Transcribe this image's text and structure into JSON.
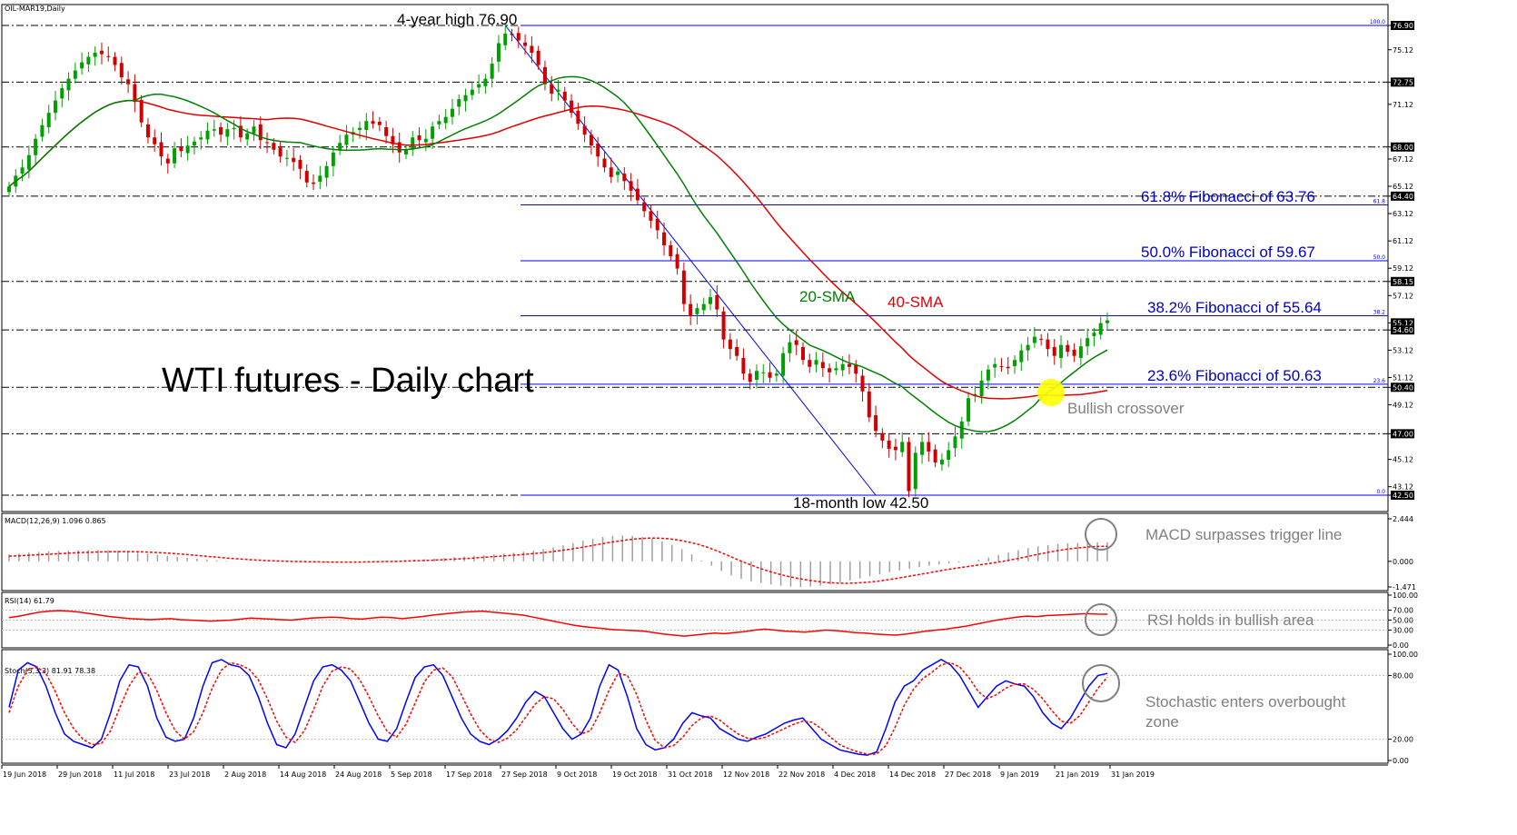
{
  "window": {
    "symbol_label": "OIL-MAR19,Daily",
    "headline": "WTI futures - Daily chart"
  },
  "annotations": {
    "high": "4-year high 76.90",
    "low": "18-month low 42.50",
    "sma20": "20-SMA",
    "sma40": "40-SMA",
    "fib618": "61.8% Fibonacci of 63.76",
    "fib50": "50.0% Fibonacci of 59.67",
    "fib382": "38.2% Fibonacci of 55.64",
    "fib236": "23.6% Fibonacci of 50.63",
    "crossover": "Bullish crossover",
    "macd_note": "MACD surpasses trigger line",
    "rsi_note": "RSI holds in bullish area",
    "stoch_note_1": "Stochastic enters overbought",
    "stoch_note_2": "zone"
  },
  "colors": {
    "bull": "#00a000",
    "bear": "#d00000",
    "sma20": "#008000",
    "sma40": "#e00000",
    "fib": "#0000ff",
    "annotation_blue": "#0000cc",
    "crossover_marker": "#ffff00",
    "oscillator_main": "#0000ff",
    "oscillator_signal": "#ff0000",
    "grid_dash": "#000000"
  },
  "chart_data": [
    {
      "type": "candlestick",
      "title": "OIL-MAR19,Daily",
      "ylim": [
        42.5,
        76.9
      ],
      "price_ticks": [
        "76.90",
        "75.12",
        "72.75",
        "71.12",
        "68.00",
        "67.12",
        "65.12",
        "64.40",
        "63.12",
        "61.12",
        "59.12",
        "58.15",
        "57.12",
        "55.12",
        "54.60",
        "53.12",
        "51.12",
        "50.40",
        "49.12",
        "47.00",
        "45.12",
        "43.12",
        "42.50"
      ],
      "highlighted_ticks": [
        "76.90",
        "72.75",
        "68.00",
        "64.40",
        "58.15",
        "55.12",
        "54.60",
        "50.40",
        "47.00",
        "42.50"
      ],
      "horizontal_levels": [
        76.9,
        72.75,
        68.0,
        64.4,
        58.15,
        54.6,
        50.4,
        47.0,
        42.5
      ],
      "fibonacci": [
        {
          "label": "100.0",
          "value": 76.9
        },
        {
          "label": "61.8",
          "value": 63.76
        },
        {
          "label": "50.0",
          "value": 59.67
        },
        {
          "label": "38.2",
          "value": 55.64
        },
        {
          "label": "23.6",
          "value": 50.63
        },
        {
          "label": "0.0",
          "value": 42.5
        }
      ],
      "x_ticks": [
        "19 Jun 2018",
        "29 Jun 2018",
        "11 Jul 2018",
        "23 Jul 2018",
        "2 Aug 2018",
        "14 Aug 2018",
        "24 Aug 2018",
        "5 Sep 2018",
        "17 Sep 2018",
        "27 Sep 2018",
        "9 Oct 2018",
        "19 Oct 2018",
        "31 Oct 2018",
        "12 Nov 2018",
        "22 Nov 2018",
        "4 Dec 2018",
        "14 Dec 2018",
        "27 Dec 2018",
        "9 Jan 2019",
        "21 Jan 2019",
        "31 Jan 2019"
      ],
      "close_series": [
        65.1,
        65.9,
        66.5,
        67.4,
        68.6,
        69.6,
        70.5,
        71.4,
        72.3,
        73.0,
        73.6,
        74.2,
        74.6,
        74.9,
        74.8,
        74.6,
        74.0,
        73.1,
        72.6,
        71.3,
        69.8,
        68.7,
        68.2,
        67.3,
        66.8,
        67.9,
        67.7,
        68.1,
        68.4,
        68.7,
        69.2,
        69.3,
        68.9,
        69.3,
        69.4,
        68.7,
        69.0,
        69.5,
        68.5,
        68.3,
        67.8,
        67.3,
        67.2,
        66.9,
        66.4,
        65.4,
        65.3,
        65.9,
        66.6,
        67.6,
        68.3,
        68.9,
        69.1,
        69.4,
        69.9,
        69.7,
        69.6,
        68.8,
        68.2,
        67.6,
        67.8,
        68.7,
        68.5,
        68.6,
        69.5,
        69.9,
        70.2,
        70.8,
        71.5,
        71.8,
        72.2,
        72.6,
        73.0,
        74.1,
        75.6,
        76.3,
        76.2,
        75.8,
        75.4,
        74.9,
        74.0,
        72.6,
        71.9,
        72.2,
        71.4,
        70.5,
        69.7,
        68.9,
        68.1,
        67.3,
        66.5,
        65.8,
        66.2,
        65.5,
        64.8,
        64.1,
        63.3,
        62.6,
        61.9,
        60.8,
        60.0,
        59.1,
        56.5,
        55.6,
        56.2,
        56.5,
        57.0,
        56.1,
        53.9,
        53.2,
        52.7,
        51.4,
        50.8,
        51.6,
        51.5,
        51.1,
        51.4,
        52.9,
        53.7,
        53.5,
        52.4,
        51.9,
        52.4,
        51.8,
        51.5,
        51.8,
        52.1,
        51.9,
        51.4,
        50.1,
        48.2,
        47.2,
        46.5,
        45.9,
        45.8,
        46.4,
        42.8,
        45.6,
        46.4,
        45.7,
        44.9,
        45.1,
        45.8,
        46.8,
        47.9,
        49.6,
        49.9,
        50.9,
        51.7,
        52.1,
        51.9,
        51.8,
        52.4,
        53.1,
        53.5,
        54.1,
        53.9,
        53.2,
        52.7,
        53.5,
        53.0,
        52.7,
        53.4,
        54.0,
        54.4,
        55.1,
        55.3
      ],
      "sma20_label": "20-SMA",
      "sma40_label": "40-SMA"
    },
    {
      "type": "histogram",
      "title": "MACD(12,26,9) 1.096 0.865",
      "ylim": [
        -1.471,
        2.444
      ],
      "y_ticks": [
        "2.444",
        "0.000",
        "-1.471"
      ],
      "macd": [
        0.4,
        0.45,
        0.5,
        0.55,
        0.58,
        0.6,
        0.62,
        0.64,
        0.65,
        0.65,
        0.64,
        0.6,
        0.55,
        0.5,
        0.44,
        0.38,
        0.32,
        0.26,
        0.2,
        0.15,
        0.1,
        0.06,
        0.03,
        0.01,
        0.0,
        -0.02,
        -0.03,
        -0.03,
        -0.04,
        -0.05,
        -0.05,
        -0.06,
        -0.06,
        -0.05,
        -0.04,
        -0.03,
        -0.01,
        0.01,
        0.03,
        0.05,
        0.08,
        0.1,
        0.13,
        0.16,
        0.2,
        0.24,
        0.28,
        0.32,
        0.36,
        0.4,
        0.45,
        0.5,
        0.56,
        0.62,
        0.7,
        0.8,
        0.92,
        1.05,
        1.18,
        1.3,
        1.4,
        1.46,
        1.48,
        1.46,
        1.4,
        1.3,
        1.15,
        0.95,
        0.7,
        0.4,
        0.05,
        -0.25,
        -0.55,
        -0.8,
        -1.0,
        -1.15,
        -1.25,
        -1.33,
        -1.4,
        -1.45,
        -1.47,
        -1.45,
        -1.4,
        -1.32,
        -1.22,
        -1.1,
        -0.98,
        -0.86,
        -0.74,
        -0.62,
        -0.52,
        -0.42,
        -0.33,
        -0.25,
        -0.18,
        -0.12,
        -0.06,
        0.0,
        0.1,
        0.22,
        0.36,
        0.5,
        0.64,
        0.76,
        0.86,
        0.94,
        1.0,
        1.04,
        1.06,
        1.08,
        1.09,
        1.096
      ],
      "signal": [
        0.3,
        0.32,
        0.35,
        0.38,
        0.41,
        0.44,
        0.47,
        0.5,
        0.52,
        0.54,
        0.55,
        0.56,
        0.56,
        0.55,
        0.53,
        0.5,
        0.47,
        0.43,
        0.38,
        0.33,
        0.28,
        0.23,
        0.18,
        0.14,
        0.1,
        0.07,
        0.04,
        0.02,
        0.0,
        -0.01,
        -0.02,
        -0.03,
        -0.04,
        -0.04,
        -0.04,
        -0.04,
        -0.03,
        -0.02,
        -0.01,
        0.0,
        0.02,
        0.04,
        0.06,
        0.08,
        0.11,
        0.14,
        0.17,
        0.21,
        0.25,
        0.29,
        0.33,
        0.37,
        0.42,
        0.47,
        0.53,
        0.6,
        0.68,
        0.77,
        0.87,
        0.97,
        1.07,
        1.16,
        1.24,
        1.3,
        1.33,
        1.33,
        1.3,
        1.23,
        1.12,
        0.98,
        0.8,
        0.58,
        0.34,
        0.09,
        -0.14,
        -0.36,
        -0.55,
        -0.72,
        -0.86,
        -0.98,
        -1.08,
        -1.16,
        -1.22,
        -1.25,
        -1.26,
        -1.24,
        -1.2,
        -1.14,
        -1.06,
        -0.97,
        -0.87,
        -0.77,
        -0.67,
        -0.57,
        -0.47,
        -0.38,
        -0.3,
        -0.22,
        -0.14,
        -0.05,
        0.05,
        0.16,
        0.28,
        0.4,
        0.51,
        0.61,
        0.7,
        0.77,
        0.82,
        0.85,
        0.865
      ]
    },
    {
      "type": "line",
      "title": "RSI(14) 61.79",
      "ylim": [
        0,
        100
      ],
      "y_ticks": [
        "100.00",
        "70.00",
        "50.00",
        "30.00",
        "0.00"
      ],
      "values": [
        55,
        58,
        62,
        66,
        68,
        69,
        68,
        66,
        63,
        60,
        57,
        55,
        53,
        52,
        51,
        52,
        53,
        51,
        50,
        49,
        48,
        49,
        50,
        52,
        54,
        53,
        52,
        51,
        50,
        52,
        54,
        55,
        56,
        55,
        53,
        52,
        54,
        56,
        55,
        53,
        55,
        57,
        60,
        62,
        64,
        66,
        67,
        68,
        66,
        64,
        62,
        60,
        56,
        52,
        48,
        44,
        40,
        37,
        35,
        33,
        31,
        30,
        29,
        28,
        25,
        22,
        20,
        18,
        20,
        22,
        24,
        23,
        25,
        27,
        30,
        32,
        30,
        28,
        27,
        26,
        28,
        30,
        29,
        27,
        25,
        24,
        22,
        21,
        20,
        22,
        25,
        28,
        30,
        32,
        35,
        38,
        42,
        46,
        50,
        53,
        56,
        58,
        57,
        59,
        60,
        61,
        62,
        63,
        62,
        61.79
      ],
      "reference_levels": [
        70,
        50,
        30
      ]
    },
    {
      "type": "line",
      "title": "Stoch(5,3,3) 81.91 78.38",
      "ylim": [
        0,
        100
      ],
      "y_ticks": [
        "100.00",
        "80.00",
        "20.00",
        "0.00"
      ],
      "k": [
        50,
        85,
        92,
        88,
        70,
        45,
        25,
        18,
        15,
        12,
        20,
        45,
        75,
        90,
        88,
        70,
        40,
        22,
        18,
        20,
        40,
        70,
        92,
        95,
        90,
        88,
        80,
        60,
        35,
        15,
        12,
        25,
        50,
        75,
        88,
        90,
        85,
        75,
        55,
        35,
        20,
        18,
        30,
        55,
        78,
        88,
        90,
        80,
        60,
        40,
        25,
        18,
        15,
        20,
        28,
        40,
        55,
        65,
        60,
        45,
        30,
        20,
        25,
        40,
        70,
        90,
        85,
        60,
        30,
        15,
        10,
        12,
        20,
        35,
        45,
        42,
        40,
        30,
        25,
        20,
        18,
        22,
        25,
        30,
        35,
        38,
        40,
        30,
        20,
        15,
        10,
        8,
        6,
        5,
        8,
        30,
        55,
        70,
        75,
        85,
        90,
        95,
        90,
        80,
        65,
        50,
        60,
        70,
        75,
        72,
        70,
        60,
        45,
        35,
        30,
        40,
        55,
        70,
        80,
        81.91
      ],
      "d": [
        45,
        70,
        85,
        88,
        82,
        65,
        45,
        30,
        20,
        15,
        16,
        28,
        50,
        70,
        83,
        82,
        66,
        45,
        28,
        20,
        27,
        45,
        68,
        85,
        92,
        90,
        86,
        76,
        58,
        37,
        22,
        17,
        28,
        48,
        70,
        84,
        88,
        86,
        76,
        60,
        42,
        27,
        22,
        34,
        54,
        74,
        85,
        87,
        79,
        62,
        44,
        29,
        20,
        17,
        21,
        29,
        41,
        53,
        60,
        58,
        48,
        35,
        25,
        28,
        45,
        66,
        82,
        80,
        62,
        38,
        19,
        12,
        14,
        22,
        33,
        40,
        42,
        38,
        31,
        25,
        21,
        20,
        22,
        26,
        30,
        34,
        37,
        36,
        30,
        22,
        15,
        11,
        8,
        6,
        6,
        14,
        31,
        52,
        67,
        77,
        83,
        90,
        92,
        88,
        78,
        65,
        58,
        62,
        68,
        72,
        72,
        67,
        58,
        47,
        37,
        35,
        42,
        55,
        68,
        78.38
      ],
      "reference_levels": [
        80,
        20
      ]
    }
  ]
}
